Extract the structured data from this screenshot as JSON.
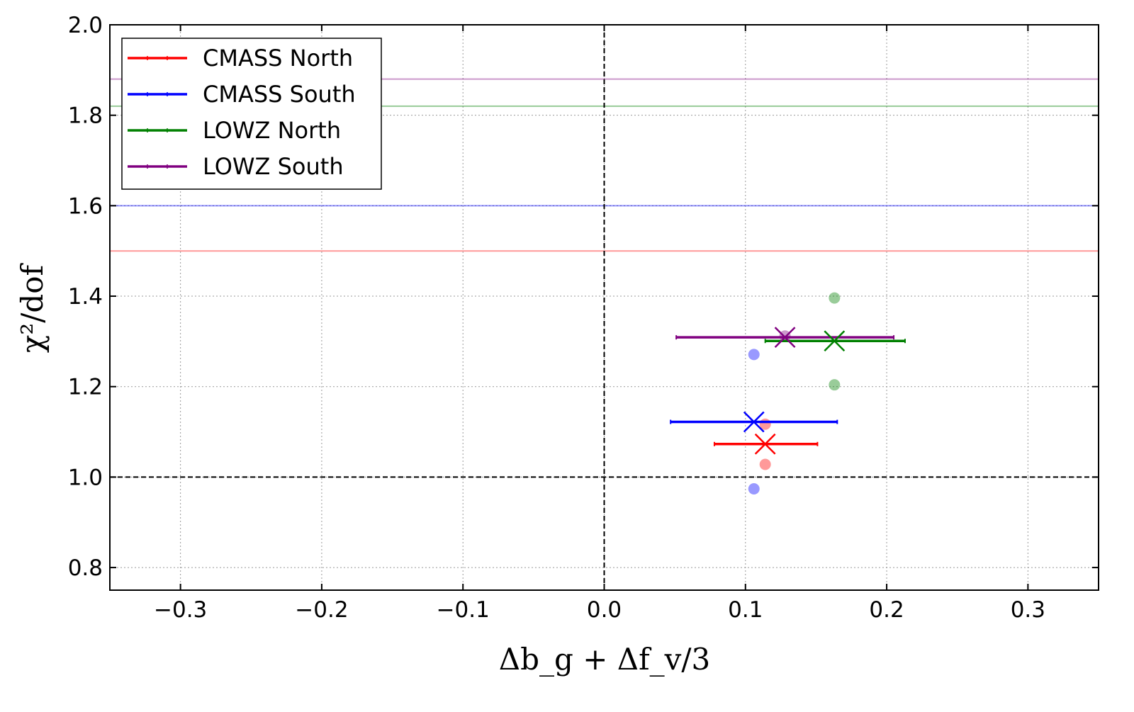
{
  "chart_data": {
    "type": "scatter",
    "title": "",
    "xlabel": "Δb_g + Δf_v/3",
    "ylabel": "χ²/dof",
    "xlim": [
      -0.35,
      0.35
    ],
    "ylim": [
      0.75,
      2.0
    ],
    "xticks": [
      -0.3,
      -0.2,
      -0.1,
      0.0,
      0.1,
      0.2,
      0.3
    ],
    "xtick_labels": [
      "−0.3",
      "−0.2",
      "−0.1",
      "0.0",
      "0.1",
      "0.2",
      "0.3"
    ],
    "yticks": [
      0.8,
      1.0,
      1.2,
      1.4,
      1.6,
      1.8,
      2.0
    ],
    "ytick_labels": [
      "0.8",
      "1.0",
      "1.2",
      "1.4",
      "1.6",
      "1.8",
      "2.0"
    ],
    "grid": true,
    "legend_position": "top-left",
    "reference_lines": [
      {
        "orientation": "vertical",
        "value": 0.0,
        "style": "dashed",
        "color": "#000000"
      },
      {
        "orientation": "horizontal",
        "value": 1.0,
        "style": "dashed",
        "color": "#000000"
      }
    ],
    "series": [
      {
        "name": "CMASS North",
        "color": "#ff0000",
        "x": 0.114,
        "y": 1.073,
        "xerr_low": 0.078,
        "xerr_high": 0.151,
        "threshold": 1.5,
        "dots": [
          {
            "x": 0.114,
            "y": 1.117
          },
          {
            "x": 0.114,
            "y": 1.028
          }
        ]
      },
      {
        "name": "CMASS South",
        "color": "#0000ff",
        "x": 0.106,
        "y": 1.122,
        "xerr_low": 0.047,
        "xerr_high": 0.165,
        "threshold": 1.6,
        "dots": [
          {
            "x": 0.106,
            "y": 1.271
          },
          {
            "x": 0.106,
            "y": 0.974
          }
        ]
      },
      {
        "name": "LOWZ North",
        "color": "#008000",
        "x": 0.163,
        "y": 1.301,
        "xerr_low": 0.114,
        "xerr_high": 0.213,
        "threshold": 1.82,
        "dots": [
          {
            "x": 0.163,
            "y": 1.396
          },
          {
            "x": 0.163,
            "y": 1.204
          }
        ]
      },
      {
        "name": "LOWZ South",
        "color": "#800080",
        "x": 0.128,
        "y": 1.309,
        "xerr_low": 0.051,
        "xerr_high": 0.205,
        "threshold": 1.88,
        "dots": [
          {
            "x": 0.128,
            "y": 1.312
          }
        ]
      }
    ]
  }
}
